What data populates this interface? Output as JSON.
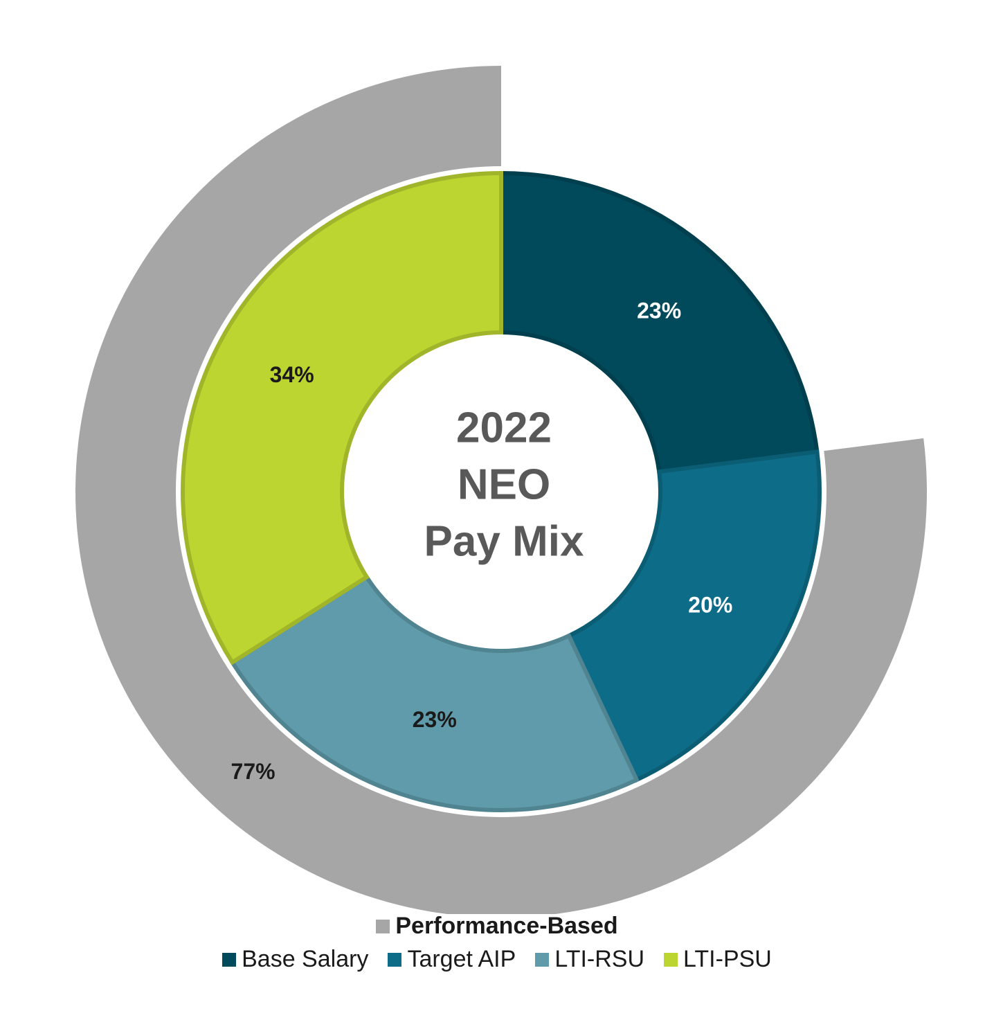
{
  "chart_data": {
    "type": "donut",
    "center_text": [
      "2022",
      "NEO",
      "Pay Mix"
    ],
    "outer_ring": {
      "name": "Performance-Based",
      "color": "#a6a6a6",
      "value": 77,
      "value_label": "77%",
      "label_color": "#1a1a1a"
    },
    "categories": [
      "Base Salary",
      "Target AIP",
      "LTI-RSU",
      "LTI-PSU"
    ],
    "values": [
      23,
      20,
      23,
      34
    ],
    "value_labels": [
      "23%",
      "20%",
      "23%",
      "34%"
    ],
    "colors": [
      "#004a5c",
      "#0d6d89",
      "#5f9bab",
      "#bdd531"
    ],
    "label_colors": [
      "#ffffff",
      "#ffffff",
      "#1a1a1a",
      "#1a1a1a"
    ]
  }
}
